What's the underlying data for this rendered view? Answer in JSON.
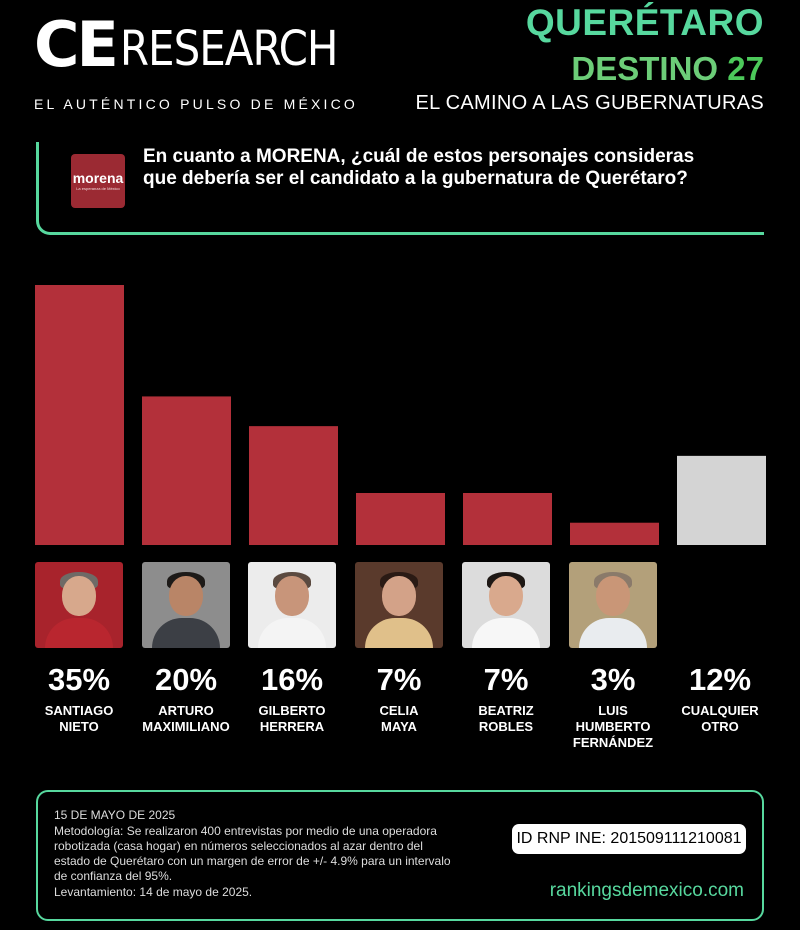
{
  "header": {
    "logo_ce": "CE",
    "logo_research": "RESEARCH",
    "tagline": "EL AUTÉNTICO PULSO DE MÉXICO",
    "title": "QUERÉTARO",
    "subtitle_main": "DESTINO",
    "subtitle_accent": "27",
    "caption": "EL CAMINO A LAS GUBERNATURAS"
  },
  "question": {
    "party_logo_text": "morena",
    "party_logo_slogan": "La esperanza de México",
    "text": "En cuanto a MORENA, ¿cuál de estos personajes consideras que debería ser el candidato a la gubernatura de Querétaro?"
  },
  "chart_data": {
    "type": "bar",
    "categories": [
      "SANTIAGO NIETO",
      "ARTURO MAXIMILIANO",
      "GILBERTO HERRERA",
      "CELIA MAYA",
      "BEATRIZ ROBLES",
      "LUIS HUMBERTO FERNÁNDEZ",
      "CUALQUIER OTRO"
    ],
    "values": [
      35,
      20,
      16,
      7,
      7,
      3,
      12
    ],
    "value_labels": [
      "35%",
      "20%",
      "16%",
      "7%",
      "7%",
      "3%",
      "12%"
    ],
    "name_lines": [
      [
        "SANTIAGO",
        "NIETO"
      ],
      [
        "ARTURO",
        "MAXIMILIANO"
      ],
      [
        "GILBERTO",
        "HERRERA"
      ],
      [
        "CELIA",
        "MAYA"
      ],
      [
        "BEATRIZ",
        "ROBLES"
      ],
      [
        "LUIS",
        "HUMBERTO",
        "FERNÁNDEZ"
      ],
      [
        "CUALQUIER",
        "OTRO"
      ]
    ],
    "colors": [
      "#b3303a",
      "#b3303a",
      "#b3303a",
      "#b3303a",
      "#b3303a",
      "#b3303a",
      "#d4d4d4"
    ],
    "ylim": [
      0,
      35
    ],
    "grid": false,
    "legend": "none"
  },
  "footer": {
    "date": "15 DE MAYO DE 2025",
    "methodology_lines": [
      "Metodología: Se realizaron 400 entrevistas por medio de una operadora",
      "robotizada (casa hogar) en números seleccionados al azar dentro del",
      "estado de Querétaro con un margen de error de +/- 4.9% para un intervalo",
      "de confianza del 95%."
    ],
    "fieldwork": "Levantamiento: 14 de mayo de 2025.",
    "rnp": "ID RNP INE: 201509111210081",
    "website": "rankingsdemexico.com"
  },
  "colors": {
    "background": "#000000",
    "accent_green": "#57d89e",
    "bar_red": "#b3303a",
    "bar_other": "#d4d4d4"
  }
}
